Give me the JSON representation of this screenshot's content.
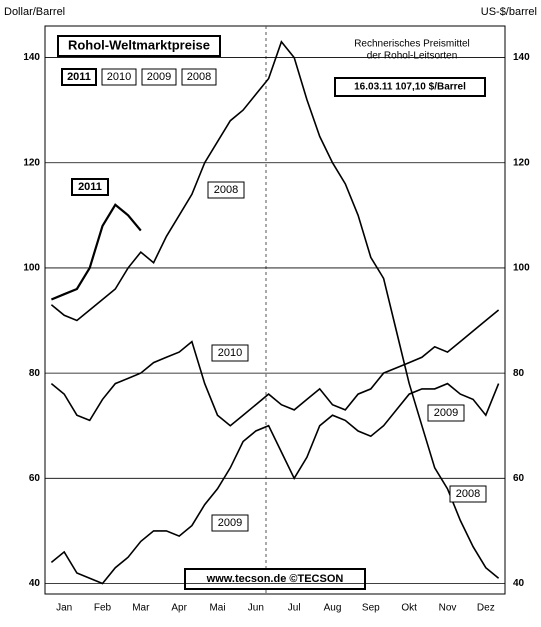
{
  "chart_data": {
    "type": "line",
    "title": "Rohol-Weltmarktpreise",
    "y_label": "Dollar/Barrel",
    "y2_label": "US-$/barrel",
    "annotations": [
      "Rechnerisches Preismittel",
      "der Rohol-Leitsorten",
      "16.03.11   107,10 $/Barrel",
      "www.tecson.de  ©TECSON"
    ],
    "categories": [
      null,
      "Jan",
      null,
      null,
      "Feb",
      null,
      null,
      "Mar",
      null,
      null,
      "Apr",
      null,
      null,
      "Mai",
      null,
      null,
      "Jun",
      null,
      null,
      "Jul",
      null,
      null,
      "Aug",
      null,
      null,
      "Sep",
      null,
      null,
      "Okt",
      null,
      null,
      "Nov",
      null,
      null,
      "Dez",
      null
    ],
    "ylim": [
      38,
      146
    ],
    "yticks": [
      40,
      60,
      80,
      100,
      120,
      140
    ],
    "grid": true,
    "series": [
      {
        "name": "2011",
        "color": "#000000",
        "values": [
          94,
          95,
          96,
          100,
          108,
          112,
          110,
          107.1,
          null,
          null,
          null,
          null,
          null,
          null,
          null,
          null,
          null,
          null,
          null,
          null,
          null,
          null,
          null,
          null,
          null,
          null,
          null,
          null,
          null,
          null,
          null,
          null,
          null,
          null,
          null,
          null
        ]
      },
      {
        "name": "2010",
        "color": "#000000",
        "values": [
          78,
          76,
          72,
          71,
          75,
          78,
          79,
          80,
          82,
          83,
          84,
          86,
          78,
          72,
          70,
          72,
          74,
          76,
          74,
          73,
          75,
          77,
          74,
          73,
          76,
          77,
          80,
          81,
          82,
          83,
          85,
          84,
          86,
          88,
          90,
          92
        ]
      },
      {
        "name": "2009",
        "color": "#000000",
        "values": [
          44,
          46,
          42,
          41,
          40,
          43,
          45,
          48,
          50,
          50,
          49,
          51,
          55,
          58,
          62,
          67,
          69,
          70,
          65,
          60,
          64,
          70,
          72,
          71,
          69,
          68,
          70,
          73,
          76,
          77,
          77,
          78,
          76,
          75,
          72,
          78
        ]
      },
      {
        "name": "2008",
        "color": "#000000",
        "values": [
          93,
          91,
          90,
          92,
          94,
          96,
          100,
          103,
          101,
          106,
          110,
          114,
          120,
          124,
          128,
          130,
          133,
          136,
          143,
          140,
          132,
          125,
          120,
          116,
          110,
          102,
          98,
          88,
          78,
          70,
          62,
          58,
          52,
          47,
          43,
          41
        ]
      }
    ]
  }
}
